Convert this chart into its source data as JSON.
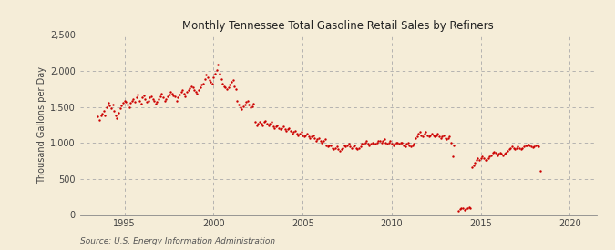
{
  "title": "Monthly Tennessee Total Gasoline Retail Sales by Refiners",
  "ylabel": "Thousand Gallons per Day",
  "source": "Source: U.S. Energy Information Administration",
  "bg_color": "#f5edd8",
  "dot_color": "#cc0000",
  "grid_color": "#aaaaaa",
  "ylim": [
    0,
    2500
  ],
  "yticks": [
    0,
    500,
    1000,
    1500,
    2000,
    2500
  ],
  "ytick_labels": [
    "0",
    "500",
    "1,000",
    "1,500",
    "2,000",
    "2,500"
  ],
  "xlim_start": 1992.5,
  "xlim_end": 2021.5,
  "xticks": [
    1995,
    2000,
    2005,
    2010,
    2015,
    2020
  ],
  "dot_size": 3,
  "seg1_start": 1993.5,
  "seg1_values": [
    1365,
    1320,
    1380,
    1410,
    1450,
    1380,
    1500,
    1560,
    1520,
    1480,
    1540,
    1450,
    1380,
    1350,
    1420,
    1480,
    1520,
    1560,
    1590,
    1570,
    1530,
    1500,
    1560,
    1590,
    1610,
    1570,
    1630,
    1670,
    1590,
    1550,
    1630,
    1660,
    1610,
    1570,
    1590,
    1630,
    1650,
    1610,
    1590,
    1550,
    1570,
    1610,
    1650,
    1690,
    1630,
    1590,
    1610,
    1650,
    1670,
    1710,
    1690,
    1660,
    1650,
    1590,
    1630,
    1670,
    1710,
    1730,
    1690,
    1650,
    1710,
    1730,
    1760,
    1790,
    1770,
    1730,
    1710,
    1690,
    1730,
    1770,
    1810,
    1830,
    1890,
    1950,
    1910,
    1870,
    1850,
    1830,
    1910,
    1960,
    2010,
    2090,
    1960,
    1890,
    1830,
    1790,
    1770,
    1750,
    1770,
    1810,
    1850,
    1870,
    1790,
    1750,
    1590,
    1530,
    1490,
    1470,
    1510,
    1530,
    1570,
    1590,
    1530,
    1490,
    1510,
    1550,
    1290,
    1250,
    1270,
    1290,
    1270,
    1250,
    1290,
    1310,
    1270,
    1250,
    1270,
    1290,
    1230,
    1210,
    1230,
    1250,
    1210,
    1190,
    1210,
    1230,
    1190,
    1170,
    1190,
    1210,
    1170,
    1130,
    1150,
    1170,
    1130,
    1110,
    1130,
    1150,
    1110,
    1090,
    1110,
    1130,
    1090,
    1070,
    1090,
    1110,
    1070,
    1030,
    1050,
    1070,
    1030,
    1010,
    1030,
    1050,
    970,
    950,
    970,
    970,
    930,
    910,
    930,
    950,
    910,
    890,
    910,
    930,
    970,
    950,
    970,
    990,
    950,
    930,
    950,
    970,
    930,
    910,
    930,
    950,
    990,
    990,
    1010,
    1030,
    990,
    970,
    990,
    1010,
    990,
    990,
    1010,
    1030,
    1030,
    1010,
    1030,
    1050,
    1010,
    990,
    1010,
    1030,
    990,
    970,
    990,
    1010,
    1010,
    990,
    1010,
    1010,
    970,
    950,
    990,
    1010,
    970,
    950,
    970,
    990,
    1070,
    1090,
    1130,
    1150,
    1110,
    1090,
    1130,
    1150,
    1110,
    1090,
    1110,
    1130,
    1110,
    1090,
    1110,
    1130,
    1090,
    1070,
    1090,
    1110,
    1070,
    1050,
    1070,
    1090,
    1010,
    810,
    960
  ],
  "seg2_start": 2013.75,
  "seg2_values": [
    60,
    80,
    100,
    90,
    70,
    80,
    100,
    110,
    90,
    660,
    690,
    730,
    760,
    790,
    760,
    790,
    810,
    790,
    760,
    770,
    790,
    810,
    830,
    860,
    880,
    860,
    830,
    850,
    870,
    850,
    830,
    850,
    870,
    890,
    910,
    930,
    950,
    930,
    910,
    930,
    950,
    930,
    910,
    930,
    950,
    960,
    970,
    980,
    970,
    950,
    940,
    950,
    970,
    960,
    950,
    610
  ]
}
